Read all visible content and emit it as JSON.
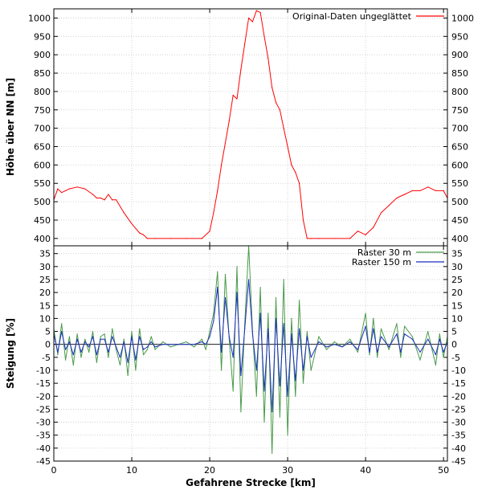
{
  "chart_data": [
    {
      "type": "line",
      "ylabel": "Höhe über NN [m]",
      "xlim": [
        0,
        50.5
      ],
      "ylim": [
        380,
        1025
      ],
      "yticks": [
        400,
        450,
        500,
        550,
        600,
        650,
        700,
        750,
        800,
        850,
        900,
        950,
        1000
      ],
      "grid": true,
      "legend": "top-right",
      "series": [
        {
          "name": "Original-Daten ungeglättet",
          "color": "#ff0000",
          "x": [
            0,
            0.5,
            1,
            1.5,
            2,
            3,
            4,
            5,
            5.5,
            6,
            6.5,
            7,
            7.5,
            8,
            9,
            10,
            11,
            11.5,
            12,
            13,
            15,
            17,
            19,
            20,
            20.5,
            21,
            21.5,
            22,
            22.5,
            23,
            23.5,
            24,
            24.5,
            25,
            25.5,
            26,
            26.5,
            27,
            27.5,
            28,
            28.5,
            29,
            29.5,
            30,
            30.5,
            31,
            31.5,
            32,
            32.5,
            33,
            34,
            36,
            38,
            39,
            40,
            41,
            42,
            43,
            44,
            45,
            46,
            47,
            48,
            49,
            50,
            50.5
          ],
          "y": [
            505,
            535,
            525,
            530,
            535,
            540,
            535,
            520,
            510,
            510,
            505,
            520,
            505,
            505,
            470,
            440,
            415,
            410,
            400,
            400,
            400,
            400,
            400,
            420,
            470,
            530,
            600,
            660,
            720,
            790,
            780,
            860,
            930,
            1000,
            990,
            1020,
            1015,
            950,
            890,
            810,
            770,
            750,
            700,
            650,
            600,
            580,
            550,
            450,
            400,
            400,
            400,
            400,
            400,
            420,
            410,
            430,
            470,
            490,
            510,
            520,
            530,
            530,
            540,
            530,
            530,
            510
          ]
        }
      ]
    },
    {
      "type": "line",
      "xlabel": "Gefahrene Strecke [km]",
      "ylabel": "Steigung [%]",
      "xlim": [
        0,
        50.5
      ],
      "ylim": [
        -45,
        38
      ],
      "xticks": [
        0,
        10,
        20,
        30,
        40,
        50
      ],
      "yticks": [
        -45,
        -40,
        -35,
        -30,
        -25,
        -20,
        -15,
        -10,
        -5,
        0,
        5,
        10,
        15,
        20,
        25,
        30,
        35
      ],
      "grid": true,
      "legend": "top-right",
      "series": [
        {
          "name": "Raster 30 m",
          "color": "#4a9a4a",
          "x": [
            0,
            0.5,
            1,
            1.5,
            2,
            2.5,
            3,
            3.5,
            4,
            4.5,
            5,
            5.5,
            6,
            6.5,
            7,
            7.5,
            8,
            8.5,
            9,
            9.5,
            10,
            10.5,
            11,
            11.5,
            12,
            12.5,
            13,
            14,
            15,
            16,
            17,
            18,
            19,
            19.5,
            20,
            20.5,
            21,
            21.5,
            22,
            22.5,
            23,
            23.5,
            24,
            24.5,
            25,
            25.5,
            26,
            26.5,
            27,
            27.5,
            28,
            28.5,
            29,
            29.5,
            30,
            30.5,
            31,
            31.5,
            32,
            32.5,
            33,
            34,
            35,
            36,
            37,
            38,
            39,
            40,
            40.5,
            41,
            41.5,
            42,
            43,
            44,
            44.5,
            45,
            46,
            47,
            48,
            49,
            49.5,
            50,
            50.5
          ],
          "y": [
            6,
            -4,
            8,
            -6,
            3,
            -8,
            4,
            -5,
            2,
            -3,
            5,
            -7,
            3,
            4,
            -5,
            6,
            -2,
            -8,
            2,
            -12,
            5,
            -10,
            6,
            -4,
            -2,
            3,
            -2,
            1,
            -1,
            0,
            1,
            -1,
            2,
            -2,
            5,
            12,
            28,
            -10,
            27,
            2,
            -18,
            30,
            -26,
            8,
            38,
            5,
            -20,
            22,
            -30,
            12,
            -42,
            18,
            -28,
            25,
            -35,
            10,
            -20,
            17,
            -15,
            5,
            -10,
            3,
            -2,
            1,
            -1,
            2,
            -3,
            12,
            -4,
            10,
            -5,
            6,
            -2,
            8,
            -5,
            7,
            3,
            -6,
            5,
            -8,
            4,
            -5,
            3
          ]
        },
        {
          "name": "Raster 150 m",
          "color": "#1c2fbf",
          "x": [
            0,
            0.5,
            1,
            1.5,
            2,
            2.5,
            3,
            3.5,
            4,
            4.5,
            5,
            5.5,
            6,
            6.5,
            7,
            7.5,
            8,
            8.5,
            9,
            9.5,
            10,
            10.5,
            11,
            11.5,
            12,
            12.5,
            13,
            14,
            15,
            16,
            17,
            18,
            19,
            19.5,
            20,
            20.5,
            21,
            21.5,
            22,
            22.5,
            23,
            23.5,
            24,
            24.5,
            25,
            25.5,
            26,
            26.5,
            27,
            27.5,
            28,
            28.5,
            29,
            29.5,
            30,
            30.5,
            31,
            31.5,
            32,
            32.5,
            33,
            34,
            35,
            36,
            37,
            38,
            39,
            40,
            40.5,
            41,
            41.5,
            42,
            43,
            44,
            44.5,
            45,
            46,
            47,
            48,
            49,
            49.5,
            50,
            50.5
          ],
          "y": [
            4,
            -3,
            5,
            -2,
            1,
            -4,
            2,
            -3,
            1,
            -1,
            3,
            -4,
            2,
            2,
            -3,
            3,
            -1,
            -5,
            1,
            -7,
            3,
            -6,
            3,
            -2,
            -1,
            1,
            -1,
            0,
            0,
            0,
            0,
            0,
            1,
            0,
            3,
            9,
            22,
            -3,
            18,
            3,
            -5,
            20,
            -12,
            6,
            25,
            4,
            -10,
            12,
            -18,
            6,
            -26,
            10,
            -16,
            8,
            -20,
            4,
            -14,
            6,
            -10,
            3,
            -5,
            1,
            -1,
            0,
            -1,
            1,
            -2,
            7,
            -3,
            6,
            -3,
            3,
            -1,
            4,
            -3,
            4,
            2,
            -3,
            2,
            -4,
            2,
            -3,
            1
          ]
        }
      ]
    }
  ]
}
